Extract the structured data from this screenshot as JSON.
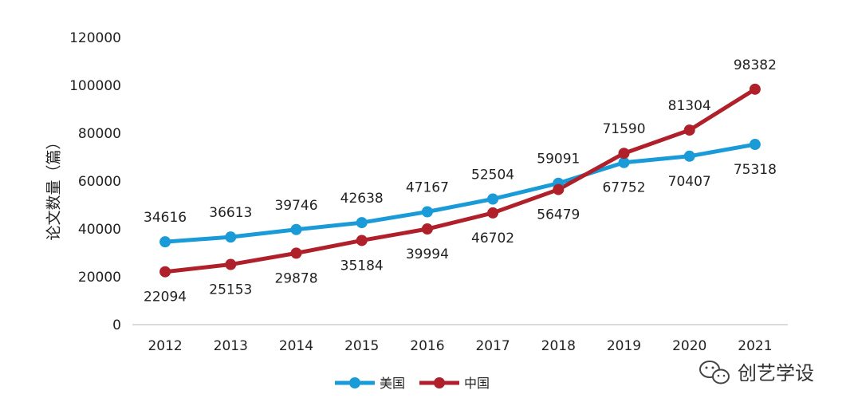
{
  "chart_data": {
    "type": "line",
    "title": "",
    "xlabel": "",
    "ylabel": "论文数量（篇）",
    "categories": [
      "2012",
      "2013",
      "2014",
      "2015",
      "2016",
      "2017",
      "2018",
      "2019",
      "2020",
      "2021"
    ],
    "ylim": [
      0,
      120000
    ],
    "yticks": [
      "0",
      "20000",
      "40000",
      "60000",
      "80000",
      "100000",
      "120000"
    ],
    "grid": false,
    "legend_position": "bottom",
    "series": [
      {
        "name": "美国",
        "color": "#1a9bd8",
        "values": [
          34616,
          36613,
          39746,
          42638,
          47167,
          52504,
          59091,
          67752,
          70407,
          75318
        ]
      },
      {
        "name": "中国",
        "color": "#b0202a",
        "values": [
          22094,
          25153,
          29878,
          35184,
          39994,
          46702,
          56479,
          71590,
          81304,
          98382
        ]
      }
    ]
  },
  "watermark": {
    "text": "创艺学设",
    "icon": "wechat-icon"
  }
}
